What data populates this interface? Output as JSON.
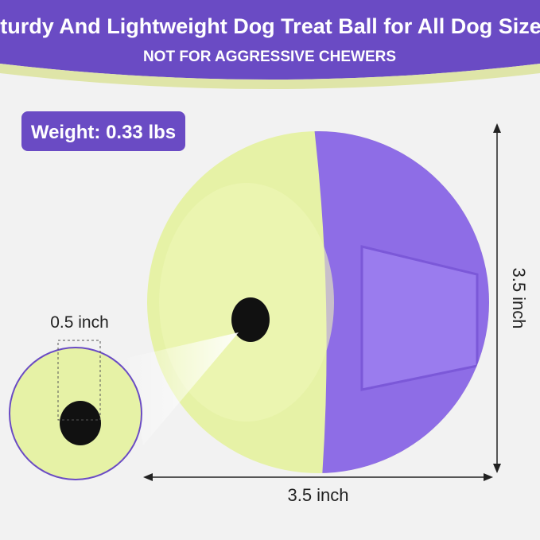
{
  "header": {
    "title": "Sturdy And Lightweight Dog Treat Ball for All Dog Sizes",
    "subtitle": "NOT FOR AGGRESSIVE CHEWERS"
  },
  "badge": {
    "text": "Weight: 0.33 lbs"
  },
  "dimensions": {
    "hole": "0.5 inch",
    "height": "3.5 inch",
    "width": "3.5 inch"
  }
}
